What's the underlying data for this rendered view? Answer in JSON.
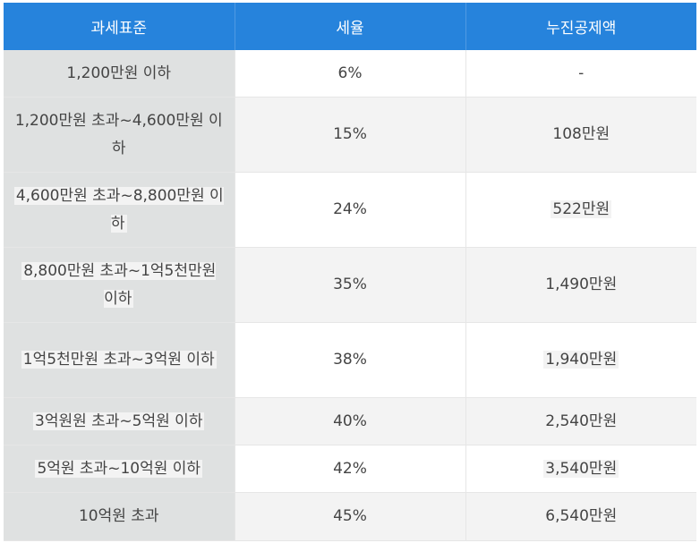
{
  "table": {
    "headers": [
      "과세표준",
      "세율",
      "누진공제액"
    ],
    "rows": [
      {
        "bracket": "1,200만원 이하",
        "rate": "6%",
        "deduction": "-"
      },
      {
        "bracket": "1,200만원 초과~4,600만원 이하",
        "rate": "15%",
        "deduction": "108만원"
      },
      {
        "bracket": "4,600만원 초과~8,800만원 이하",
        "rate": "24%",
        "deduction": "522만원"
      },
      {
        "bracket": "8,800만원 초과~1억5천만원 이하",
        "rate": "35%",
        "deduction": "1,490만원"
      },
      {
        "bracket": "1억5천만원 초과~3억원 이하",
        "rate": "38%",
        "deduction": "1,940만원"
      },
      {
        "bracket": "3억원원 초과~5억원 이하",
        "rate": "40%",
        "deduction": "2,540만원"
      },
      {
        "bracket": "5억원 초과~10억원 이하",
        "rate": "42%",
        "deduction": "3,540만원"
      },
      {
        "bracket": "10억원 초과",
        "rate": "45%",
        "deduction": "6,540만원"
      }
    ]
  },
  "colors": {
    "header_bg": "#2683dc",
    "header_text": "#ffffff",
    "label_col_bg": "#dfe1e1",
    "alt_row_bg": "#f3f3f3"
  }
}
